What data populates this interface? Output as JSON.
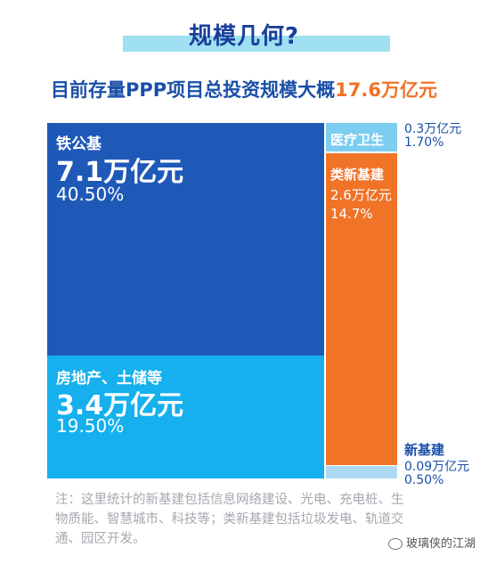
{
  "header": {
    "title": "规模几何?",
    "subtitle_prefix": "目前存量PPP项目总投资规模大概",
    "subtitle_highlight": "17.6万亿元"
  },
  "chart_data": {
    "type": "treemap",
    "total": "17.6万亿元",
    "segments": [
      {
        "name": "铁公基",
        "value": 7.1,
        "value_label": "7.1万亿元",
        "percent": 40.5,
        "percent_label": "40.50%",
        "color": "#1f59b8"
      },
      {
        "name": "房地产、土储等",
        "value": 3.4,
        "value_label": "3.4万亿元",
        "percent": 19.5,
        "percent_label": "19.50%",
        "color": "#15b0ed"
      },
      {
        "name": "医疗卫生",
        "value": 0.3,
        "value_label": "0.3万亿元",
        "percent": 1.7,
        "percent_label": "1.70%",
        "color": "#7dcdf0"
      },
      {
        "name": "类新基建",
        "value": 2.6,
        "value_label": "2.6万亿元",
        "percent": 14.7,
        "percent_label": "14.7%",
        "color": "#f07328"
      },
      {
        "name": "新基建",
        "value": 0.09,
        "value_label": "0.09万亿元",
        "percent": 0.5,
        "percent_label": "0.50%",
        "color": "#aedbf3"
      }
    ]
  },
  "note": "注：这里统计的新基建包括信息网络建设、光电、充电桩、生物质能、智慧城市、科技等；类新基建包括垃圾发电、轨道交通、园区开发。",
  "watermark": "玻璃侠的江湖"
}
